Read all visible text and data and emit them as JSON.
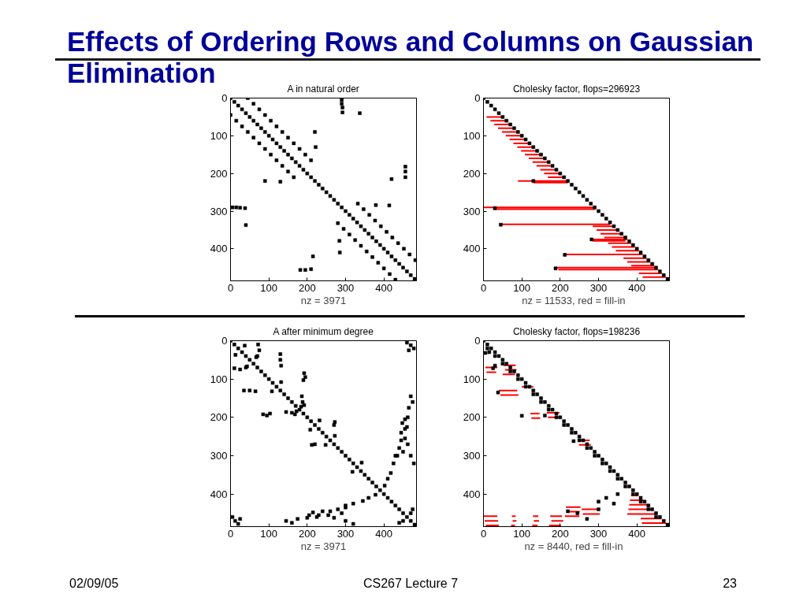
{
  "chart_data": [
    {
      "type": "scatter",
      "title": "A in natural order",
      "xlabel": "nz = 3971",
      "annotations": [
        "Effects of Ordering Rows and Columns on Gaussian Elimination",
        "02/09/05",
        "CS267 Lecture 7",
        "23"
      ],
      "xlim": [
        0,
        485
      ],
      "ylim": [
        485,
        0
      ],
      "xticks": [
        0,
        100,
        200,
        300,
        400
      ],
      "yticks": [
        0,
        100,
        200,
        300,
        400
      ],
      "marker": "square",
      "series": [
        {
          "color": "#000000",
          "x": [
            0,
            10,
            20,
            30,
            40,
            50,
            60,
            70,
            80,
            90,
            100,
            110,
            120,
            130,
            140,
            150,
            160,
            170,
            180,
            190,
            200,
            210,
            220,
            230,
            240,
            250,
            260,
            270,
            280,
            290,
            300,
            310,
            320,
            330,
            340,
            350,
            360,
            370,
            380,
            390,
            400,
            410,
            420,
            430,
            440,
            450,
            460,
            470,
            480,
            45,
            60,
            75,
            90,
            105,
            120,
            135,
            150,
            165,
            180,
            195,
            210,
            0,
            15,
            30,
            45,
            60,
            75,
            90,
            105,
            120,
            135,
            150,
            165,
            332,
            347,
            362,
            377,
            392,
            407,
            422,
            437,
            452,
            467,
            482,
            280,
            295,
            310,
            325,
            340,
            355,
            370,
            385,
            400,
            415,
            430,
            290,
            290,
            292,
            292,
            5,
            15,
            25,
            38,
            337,
            40,
            220,
            222,
            90,
            130,
            456,
            456,
            456,
            420,
            182,
            195,
            210,
            215,
            379,
            414,
            284,
            285
          ],
          "values": [
            0,
            10,
            20,
            30,
            40,
            50,
            60,
            70,
            80,
            90,
            100,
            110,
            120,
            130,
            140,
            150,
            160,
            170,
            180,
            190,
            200,
            210,
            220,
            230,
            240,
            250,
            260,
            270,
            280,
            290,
            300,
            310,
            320,
            330,
            340,
            350,
            360,
            370,
            380,
            390,
            400,
            410,
            420,
            430,
            440,
            450,
            460,
            470,
            480,
            0,
            15,
            30,
            45,
            60,
            75,
            90,
            105,
            120,
            135,
            150,
            165,
            45,
            60,
            75,
            90,
            105,
            120,
            135,
            150,
            165,
            180,
            195,
            210,
            280,
            295,
            310,
            325,
            340,
            355,
            370,
            385,
            400,
            415,
            430,
            332,
            347,
            362,
            377,
            392,
            407,
            422,
            437,
            452,
            467,
            482,
            5,
            15,
            25,
            38,
            290,
            290,
            291,
            292,
            40,
            337,
            90,
            130,
            220,
            222,
            182,
            195,
            210,
            215,
            456,
            456,
            454,
            420,
            284,
            285,
            379,
            410
          ]
        }
      ]
    },
    {
      "type": "scatter",
      "title": "Cholesky factor, flops=296923",
      "xlabel": "nz = 11533,   red = fill-in",
      "xlim": [
        0,
        485
      ],
      "ylim": [
        485,
        0
      ],
      "xticks": [
        0,
        100,
        200,
        300,
        400
      ],
      "yticks": [
        0,
        100,
        200,
        300,
        400
      ],
      "marker": "square",
      "series": [
        {
          "type": "line",
          "marker": "none",
          "color": "#ff0000",
          "x": [
            8,
            50,
            null,
            18,
            60,
            null,
            28,
            70,
            null,
            38,
            80,
            null,
            48,
            90,
            null,
            58,
            100,
            null,
            68,
            110,
            null,
            78,
            120,
            null,
            88,
            130,
            null,
            98,
            140,
            null,
            108,
            150,
            null,
            118,
            160,
            null,
            128,
            170,
            null,
            138,
            180,
            null,
            148,
            190,
            null,
            158,
            200,
            null,
            168,
            210,
            null,
            90,
            220,
            null,
            130,
            220,
            null,
            0,
            290,
            null,
            25,
            292,
            null,
            45,
            330,
            null,
            280,
            375,
            null,
            285,
            370,
            null,
            210,
            415,
            null,
            185,
            450,
            null,
            195,
            455,
            null,
            285,
            340,
            null,
            295,
            350,
            null,
            305,
            360,
            null,
            315,
            370,
            null,
            325,
            385,
            null,
            335,
            395,
            null,
            345,
            405,
            null,
            365,
            425,
            null,
            375,
            435,
            null,
            385,
            445,
            null,
            405,
            465,
            null,
            415,
            475
          ],
          "values": [
            50,
            50,
            null,
            60,
            60,
            null,
            70,
            70,
            null,
            80,
            80,
            null,
            90,
            90,
            null,
            100,
            100,
            null,
            110,
            110,
            null,
            120,
            120,
            null,
            130,
            130,
            null,
            140,
            140,
            null,
            150,
            150,
            null,
            160,
            160,
            null,
            170,
            170,
            null,
            180,
            180,
            null,
            190,
            190,
            null,
            200,
            200,
            null,
            210,
            210,
            null,
            220,
            220,
            null,
            224,
            224,
            null,
            290,
            290,
            null,
            295,
            295,
            null,
            335,
            335,
            null,
            375,
            375,
            null,
            379,
            379,
            null,
            415,
            415,
            null,
            450,
            450,
            null,
            455,
            455,
            null,
            340,
            340,
            null,
            350,
            350,
            null,
            360,
            360,
            null,
            370,
            370,
            null,
            385,
            385,
            null,
            395,
            395,
            null,
            405,
            405,
            null,
            425,
            425,
            null,
            435,
            435,
            null,
            445,
            445,
            null,
            465,
            465,
            null,
            475,
            475
          ]
        },
        {
          "color": "#000000",
          "x": [
            0,
            10,
            20,
            30,
            40,
            50,
            60,
            70,
            80,
            90,
            100,
            110,
            120,
            130,
            140,
            150,
            160,
            170,
            180,
            190,
            200,
            210,
            220,
            230,
            240,
            250,
            260,
            270,
            280,
            290,
            300,
            310,
            320,
            330,
            340,
            350,
            360,
            370,
            380,
            390,
            400,
            410,
            420,
            430,
            440,
            450,
            460,
            470,
            480,
            130,
            30,
            45,
            282,
            212,
            188
          ],
          "values": [
            0,
            10,
            20,
            30,
            40,
            50,
            60,
            70,
            80,
            90,
            100,
            110,
            120,
            130,
            140,
            150,
            160,
            170,
            180,
            190,
            200,
            210,
            220,
            230,
            240,
            250,
            260,
            270,
            280,
            290,
            300,
            310,
            320,
            330,
            340,
            350,
            360,
            370,
            380,
            390,
            400,
            410,
            420,
            430,
            440,
            450,
            460,
            470,
            480,
            220,
            292,
            336,
            375,
            416,
            452
          ]
        }
      ]
    },
    {
      "type": "scatter",
      "title": "A after minimum degree",
      "xlabel": "nz = 3971",
      "xlim": [
        0,
        485
      ],
      "ylim": [
        485,
        0
      ],
      "xticks": [
        0,
        100,
        200,
        300,
        400
      ],
      "yticks": [
        0,
        100,
        200,
        300,
        400
      ],
      "marker": "square",
      "series": [
        {
          "color": "#000000",
          "x": [
            0,
            10,
            20,
            30,
            40,
            50,
            60,
            70,
            80,
            90,
            100,
            110,
            120,
            130,
            140,
            150,
            160,
            170,
            180,
            190,
            200,
            210,
            220,
            230,
            240,
            250,
            260,
            270,
            280,
            290,
            300,
            310,
            320,
            330,
            340,
            350,
            360,
            370,
            380,
            390,
            400,
            410,
            420,
            430,
            440,
            450,
            460,
            470,
            480,
            13,
            37,
            43,
            67,
            108,
            132,
            168,
            192,
            208,
            232,
            248,
            272,
            318,
            342,
            378,
            402,
            460,
            470,
            478,
            465,
            5,
            12,
            20,
            25,
            130,
            130,
            132,
            35,
            50,
            65,
            10,
            25,
            40,
            72,
            75,
            70,
            192,
            195,
            190,
            85,
            95,
            103,
            186,
            188,
            184,
            145,
            160,
            172,
            272,
            270,
            212,
            220,
            470,
            475,
            465,
            455,
            448,
            460,
            445,
            455,
            462,
            440,
            450,
            470,
            478,
            435,
            425,
            418,
            410,
            145,
            160,
            175,
            205,
            215,
            225,
            240,
            255,
            270,
            280,
            290,
            300,
            320,
            300,
            320,
            345,
            360,
            300,
            260,
            230,
            200,
            430,
            445,
            455,
            462,
            450,
            470,
            440,
            475
          ],
          "values": [
            0,
            10,
            20,
            30,
            40,
            50,
            60,
            70,
            80,
            90,
            100,
            110,
            120,
            130,
            140,
            150,
            160,
            170,
            180,
            190,
            200,
            210,
            220,
            230,
            240,
            250,
            260,
            270,
            280,
            290,
            300,
            310,
            320,
            330,
            340,
            350,
            360,
            370,
            380,
            390,
            400,
            410,
            420,
            430,
            440,
            450,
            460,
            470,
            480,
            37,
            13,
            67,
            43,
            132,
            108,
            192,
            168,
            232,
            208,
            272,
            248,
            342,
            318,
            402,
            378,
            5,
            12,
            20,
            25,
            460,
            470,
            478,
            465,
            35,
            50,
            65,
            130,
            130,
            132,
            72,
            75,
            70,
            10,
            25,
            40,
            85,
            95,
            103,
            192,
            195,
            190,
            145,
            160,
            172,
            186,
            188,
            184,
            212,
            220,
            272,
            270,
            145,
            160,
            175,
            205,
            215,
            225,
            240,
            255,
            270,
            280,
            290,
            300,
            320,
            300,
            320,
            345,
            360,
            470,
            475,
            465,
            455,
            448,
            460,
            445,
            455,
            462,
            440,
            450,
            470,
            478,
            435,
            425,
            418,
            410,
            430,
            445,
            455,
            462,
            300,
            260,
            230,
            200,
            470,
            450,
            475,
            440
          ]
        }
      ]
    },
    {
      "type": "scatter",
      "title": "Cholesky factor, flops=198236",
      "xlabel": "nz = 8440,   red = fill-in",
      "xlim": [
        0,
        485
      ],
      "ylim": [
        485,
        0
      ],
      "xticks": [
        0,
        100,
        200,
        300,
        400
      ],
      "yticks": [
        0,
        100,
        200,
        300,
        400
      ],
      "marker": "square",
      "series": [
        {
          "type": "line",
          "marker": "none",
          "color": "#ff0000",
          "x": [
            5,
            36,
            null,
            8,
            33,
            null,
            53,
            84,
            null,
            56,
            86,
            null,
            50,
            82,
            null,
            100,
            130,
            null,
            40,
            88,
            null,
            44,
            91,
            null,
            122,
            146,
            null,
            125,
            148,
            null,
            165,
            198,
            null,
            168,
            201,
            null,
            246,
            277,
            null,
            249,
            280,
            null,
            0,
            36,
            null,
            3,
            38,
            null,
            6,
            40,
            null,
            74,
            84,
            null,
            76,
            86,
            null,
            72,
            82,
            null,
            129,
            143,
            null,
            131,
            145,
            null,
            127,
            141,
            null,
            174,
            205,
            null,
            177,
            208,
            null,
            171,
            202,
            null,
            215,
            253,
            null,
            218,
            251,
            null,
            212,
            250,
            null,
            256,
            300,
            null,
            259,
            303,
            null,
            385,
            404,
            null,
            382,
            416,
            null,
            380,
            428,
            null,
            378,
            440,
            null,
            375,
            452,
            null,
            410,
            464,
            null,
            413,
            476
          ],
          "values": [
            70,
            70,
            null,
            82,
            82,
            null,
            64,
            64,
            null,
            76,
            76,
            null,
            88,
            88,
            null,
            120,
            120,
            null,
            130,
            130,
            null,
            142,
            142,
            null,
            190,
            190,
            null,
            202,
            202,
            null,
            188,
            188,
            null,
            200,
            200,
            null,
            260,
            260,
            null,
            272,
            272,
            null,
            458,
            458,
            null,
            470,
            470,
            null,
            482,
            482,
            null,
            458,
            458,
            null,
            470,
            470,
            null,
            482,
            482,
            null,
            458,
            458,
            null,
            470,
            470,
            null,
            482,
            482,
            null,
            458,
            458,
            null,
            470,
            470,
            null,
            482,
            482,
            null,
            434,
            434,
            null,
            446,
            446,
            null,
            458,
            458,
            null,
            440,
            440,
            null,
            452,
            452,
            null,
            404,
            404,
            null,
            416,
            416,
            null,
            428,
            428,
            null,
            440,
            440,
            null,
            452,
            452,
            null,
            464,
            464,
            null,
            476,
            476
          ]
        },
        {
          "color": "#000000",
          "x": [
            0,
            10,
            20,
            30,
            40,
            50,
            60,
            70,
            80,
            90,
            100,
            110,
            120,
            130,
            140,
            150,
            160,
            170,
            180,
            190,
            200,
            210,
            220,
            230,
            240,
            250,
            260,
            270,
            280,
            290,
            300,
            310,
            320,
            330,
            340,
            350,
            360,
            370,
            380,
            390,
            400,
            410,
            420,
            430,
            440,
            450,
            460,
            470,
            480,
            10,
            30,
            50,
            70,
            90,
            110,
            130,
            150,
            170,
            190,
            210,
            230,
            250,
            270,
            290,
            310,
            330,
            350,
            370,
            390,
            410,
            430,
            450,
            15,
            5,
            30,
            25,
            38,
            100,
            160,
            235,
            220,
            300,
            320,
            340,
            350,
            300,
            245,
            270
          ],
          "values": [
            0,
            10,
            20,
            30,
            40,
            50,
            60,
            70,
            80,
            90,
            100,
            110,
            120,
            130,
            140,
            150,
            160,
            170,
            180,
            190,
            200,
            210,
            220,
            230,
            240,
            250,
            260,
            270,
            280,
            290,
            300,
            310,
            320,
            330,
            340,
            350,
            360,
            370,
            380,
            390,
            400,
            410,
            420,
            430,
            440,
            450,
            460,
            470,
            480,
            20,
            40,
            60,
            80,
            100,
            120,
            140,
            160,
            180,
            200,
            220,
            240,
            260,
            280,
            300,
            320,
            340,
            360,
            380,
            400,
            420,
            440,
            460,
            30,
            32,
            65,
            72,
            135,
            196,
            195,
            262,
            445,
            440,
            410,
            425,
            400,
            420,
            450,
            465
          ]
        }
      ]
    }
  ]
}
